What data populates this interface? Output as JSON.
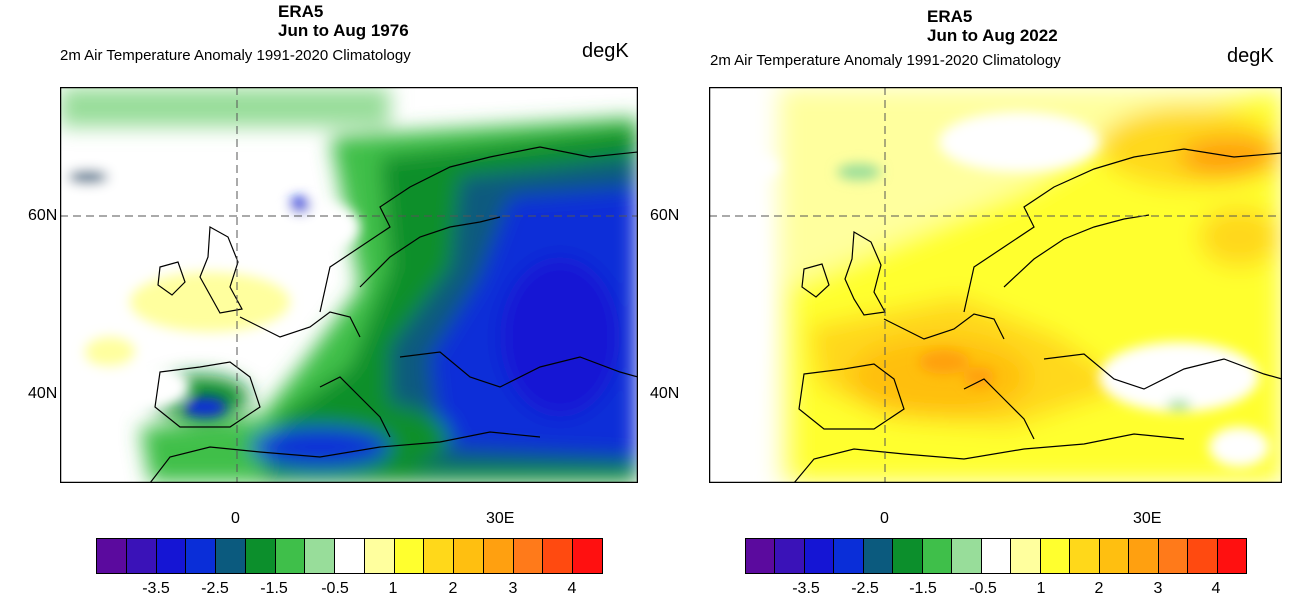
{
  "colormap": {
    "colors": [
      "#5b0a9e",
      "#3a12b8",
      "#1515d4",
      "#0a2ed8",
      "#0b5a7e",
      "#0c8f2c",
      "#3fbf4a",
      "#98dd9a",
      "#ffffff",
      "#ffff9e",
      "#ffff2e",
      "#ffd81a",
      "#ffbf10",
      "#ffa010",
      "#ff7a1a",
      "#ff4a10",
      "#ff1010"
    ],
    "tick_labels": [
      "-3.5",
      "-2.5",
      "-1.5",
      "-0.5",
      "1",
      "2",
      "3",
      "4"
    ]
  },
  "panels": [
    {
      "title_line1": "ERA5",
      "title_line2": "Jun to Aug 1976",
      "subtitle": "2m Air Temperature Anomaly  1991-2020 Climatology",
      "units": "degK",
      "ylabels": {
        "lat60": "60N",
        "lat40": "40N"
      },
      "xlabels": {
        "lon0": "0",
        "lon30": "30E"
      }
    },
    {
      "title_line1": "ERA5",
      "title_line2": "Jun to Aug 2022",
      "subtitle": "2m Air Temperature Anomaly  1991-2020 Climatology",
      "units": "degK",
      "ylabels": {
        "lat60": "60N",
        "lat40": "40N"
      },
      "xlabels": {
        "lon0": "0",
        "lon30": "30E"
      }
    }
  ]
}
